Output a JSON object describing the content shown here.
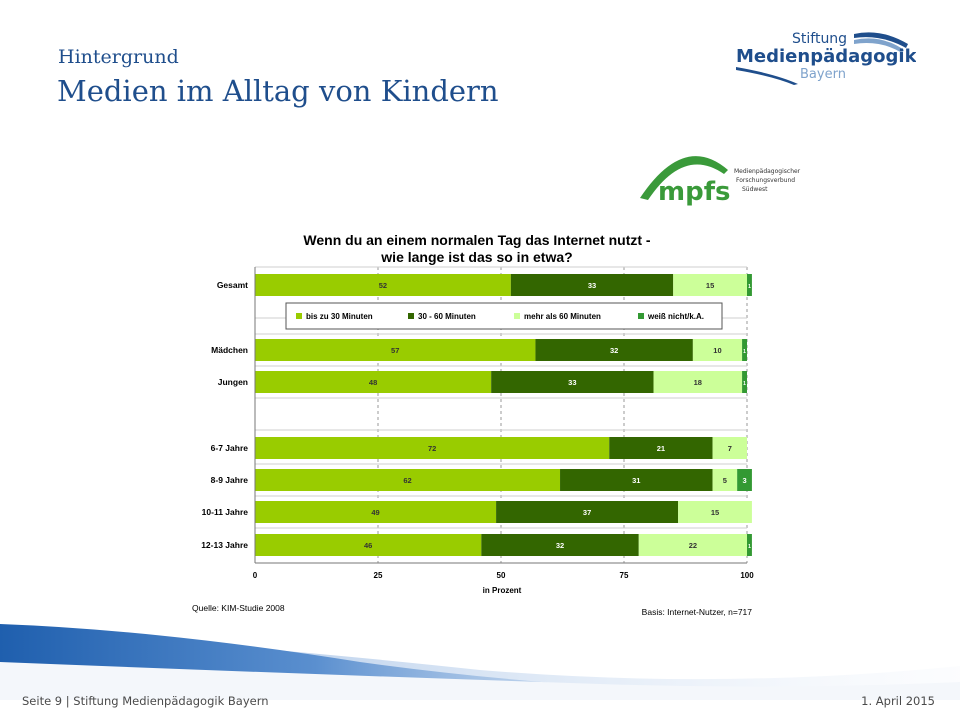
{
  "slide": {
    "subtitle": "Hintergrund",
    "title": "Medien im Alltag von Kindern"
  },
  "logos": {
    "stiftung_line1": "Stiftung",
    "stiftung_line2": "Medienpädagogik",
    "stiftung_line3": "Bayern",
    "mpfs_mark": "mpfs",
    "mpfs_line1": "Medienpädagogischer",
    "mpfs_line2": "Forschungsverbund",
    "mpfs_line3": "Südwest"
  },
  "footer": {
    "left": "Seite 9 | Stiftung Medienpädagogik Bayern",
    "right": "1. April 2015"
  },
  "colors": {
    "title_blue": "#1f4e8c",
    "series": [
      "#99cc00",
      "#336600",
      "#ccff99",
      "#339933"
    ]
  },
  "chart_data": {
    "type": "bar",
    "orientation": "horizontal",
    "stacked": true,
    "title_line1": "Wenn du an einem normalen Tag das Internet nutzt -",
    "title_line2": "wie lange ist das so in etwa?",
    "categories": [
      "Gesamt",
      "Mädchen",
      "Jungen",
      "6-7 Jahre",
      "8-9 Jahre",
      "10-11 Jahre",
      "12-13 Jahre"
    ],
    "series": [
      {
        "name": "bis zu 30 Minuten",
        "values": [
          52,
          57,
          48,
          72,
          62,
          49,
          46
        ],
        "labels": [
          "52",
          "57",
          "48",
          "72",
          "62",
          "49",
          "46"
        ]
      },
      {
        "name": "30 - 60 Minuten",
        "values": [
          33,
          32,
          33,
          21,
          31,
          37,
          32
        ],
        "labels": [
          "33",
          "32",
          "33",
          "21",
          "31",
          "37",
          "32"
        ]
      },
      {
        "name": "mehr als 60 Minuten",
        "values": [
          15,
          10,
          18,
          7,
          5,
          15,
          22
        ],
        "labels": [
          "15",
          "10",
          "18",
          "7",
          "5",
          "15",
          "22"
        ]
      },
      {
        "name": "weiß nicht/k.A.",
        "values": [
          1,
          1,
          1,
          0,
          3,
          0,
          1
        ],
        "labels": [
          "1",
          "1",
          "1",
          "",
          "3",
          "",
          "1"
        ]
      }
    ],
    "xlim": [
      0,
      100
    ],
    "xticks": [
      "0",
      "25",
      "50",
      "75",
      "100"
    ],
    "xtick_values": [
      0,
      25,
      50,
      75,
      100
    ],
    "xlabel": "in Prozent",
    "grid": "vertical dashed",
    "legend_position": "top, below Gesamt",
    "source": "Quelle: KIM-Studie 2008",
    "basis": "Basis: Internet-Nutzer, n=717"
  }
}
